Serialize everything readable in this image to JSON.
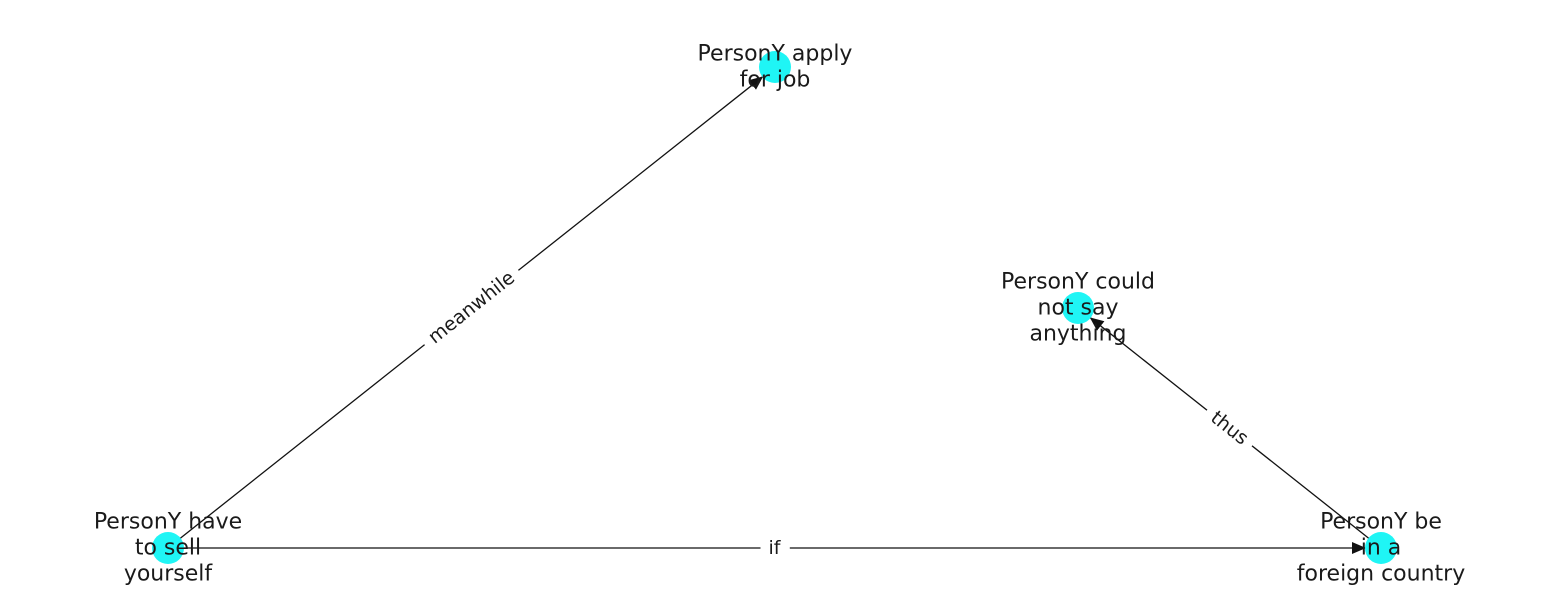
{
  "colors": {
    "node_fill": "#1ff5f5",
    "edge": "#111111",
    "text": "#1a1a1a",
    "background": "#ffffff"
  },
  "nodes": [
    {
      "id": "n1",
      "lines": [
        "PersonY apply",
        "for job"
      ]
    },
    {
      "id": "n2",
      "lines": [
        "PersonY could",
        "not say",
        "anything"
      ]
    },
    {
      "id": "n3",
      "lines": [
        "PersonY have",
        "to sell",
        "yourself"
      ]
    },
    {
      "id": "n4",
      "lines": [
        "PersonY be",
        "in a",
        "foreign country"
      ]
    }
  ],
  "edges": [
    {
      "id": "e1",
      "source": "n3",
      "target": "n1",
      "label": "meanwhile"
    },
    {
      "id": "e2",
      "source": "n3",
      "target": "n4",
      "label": "if"
    },
    {
      "id": "e3",
      "source": "n4",
      "target": "n2",
      "label": "thus"
    }
  ]
}
